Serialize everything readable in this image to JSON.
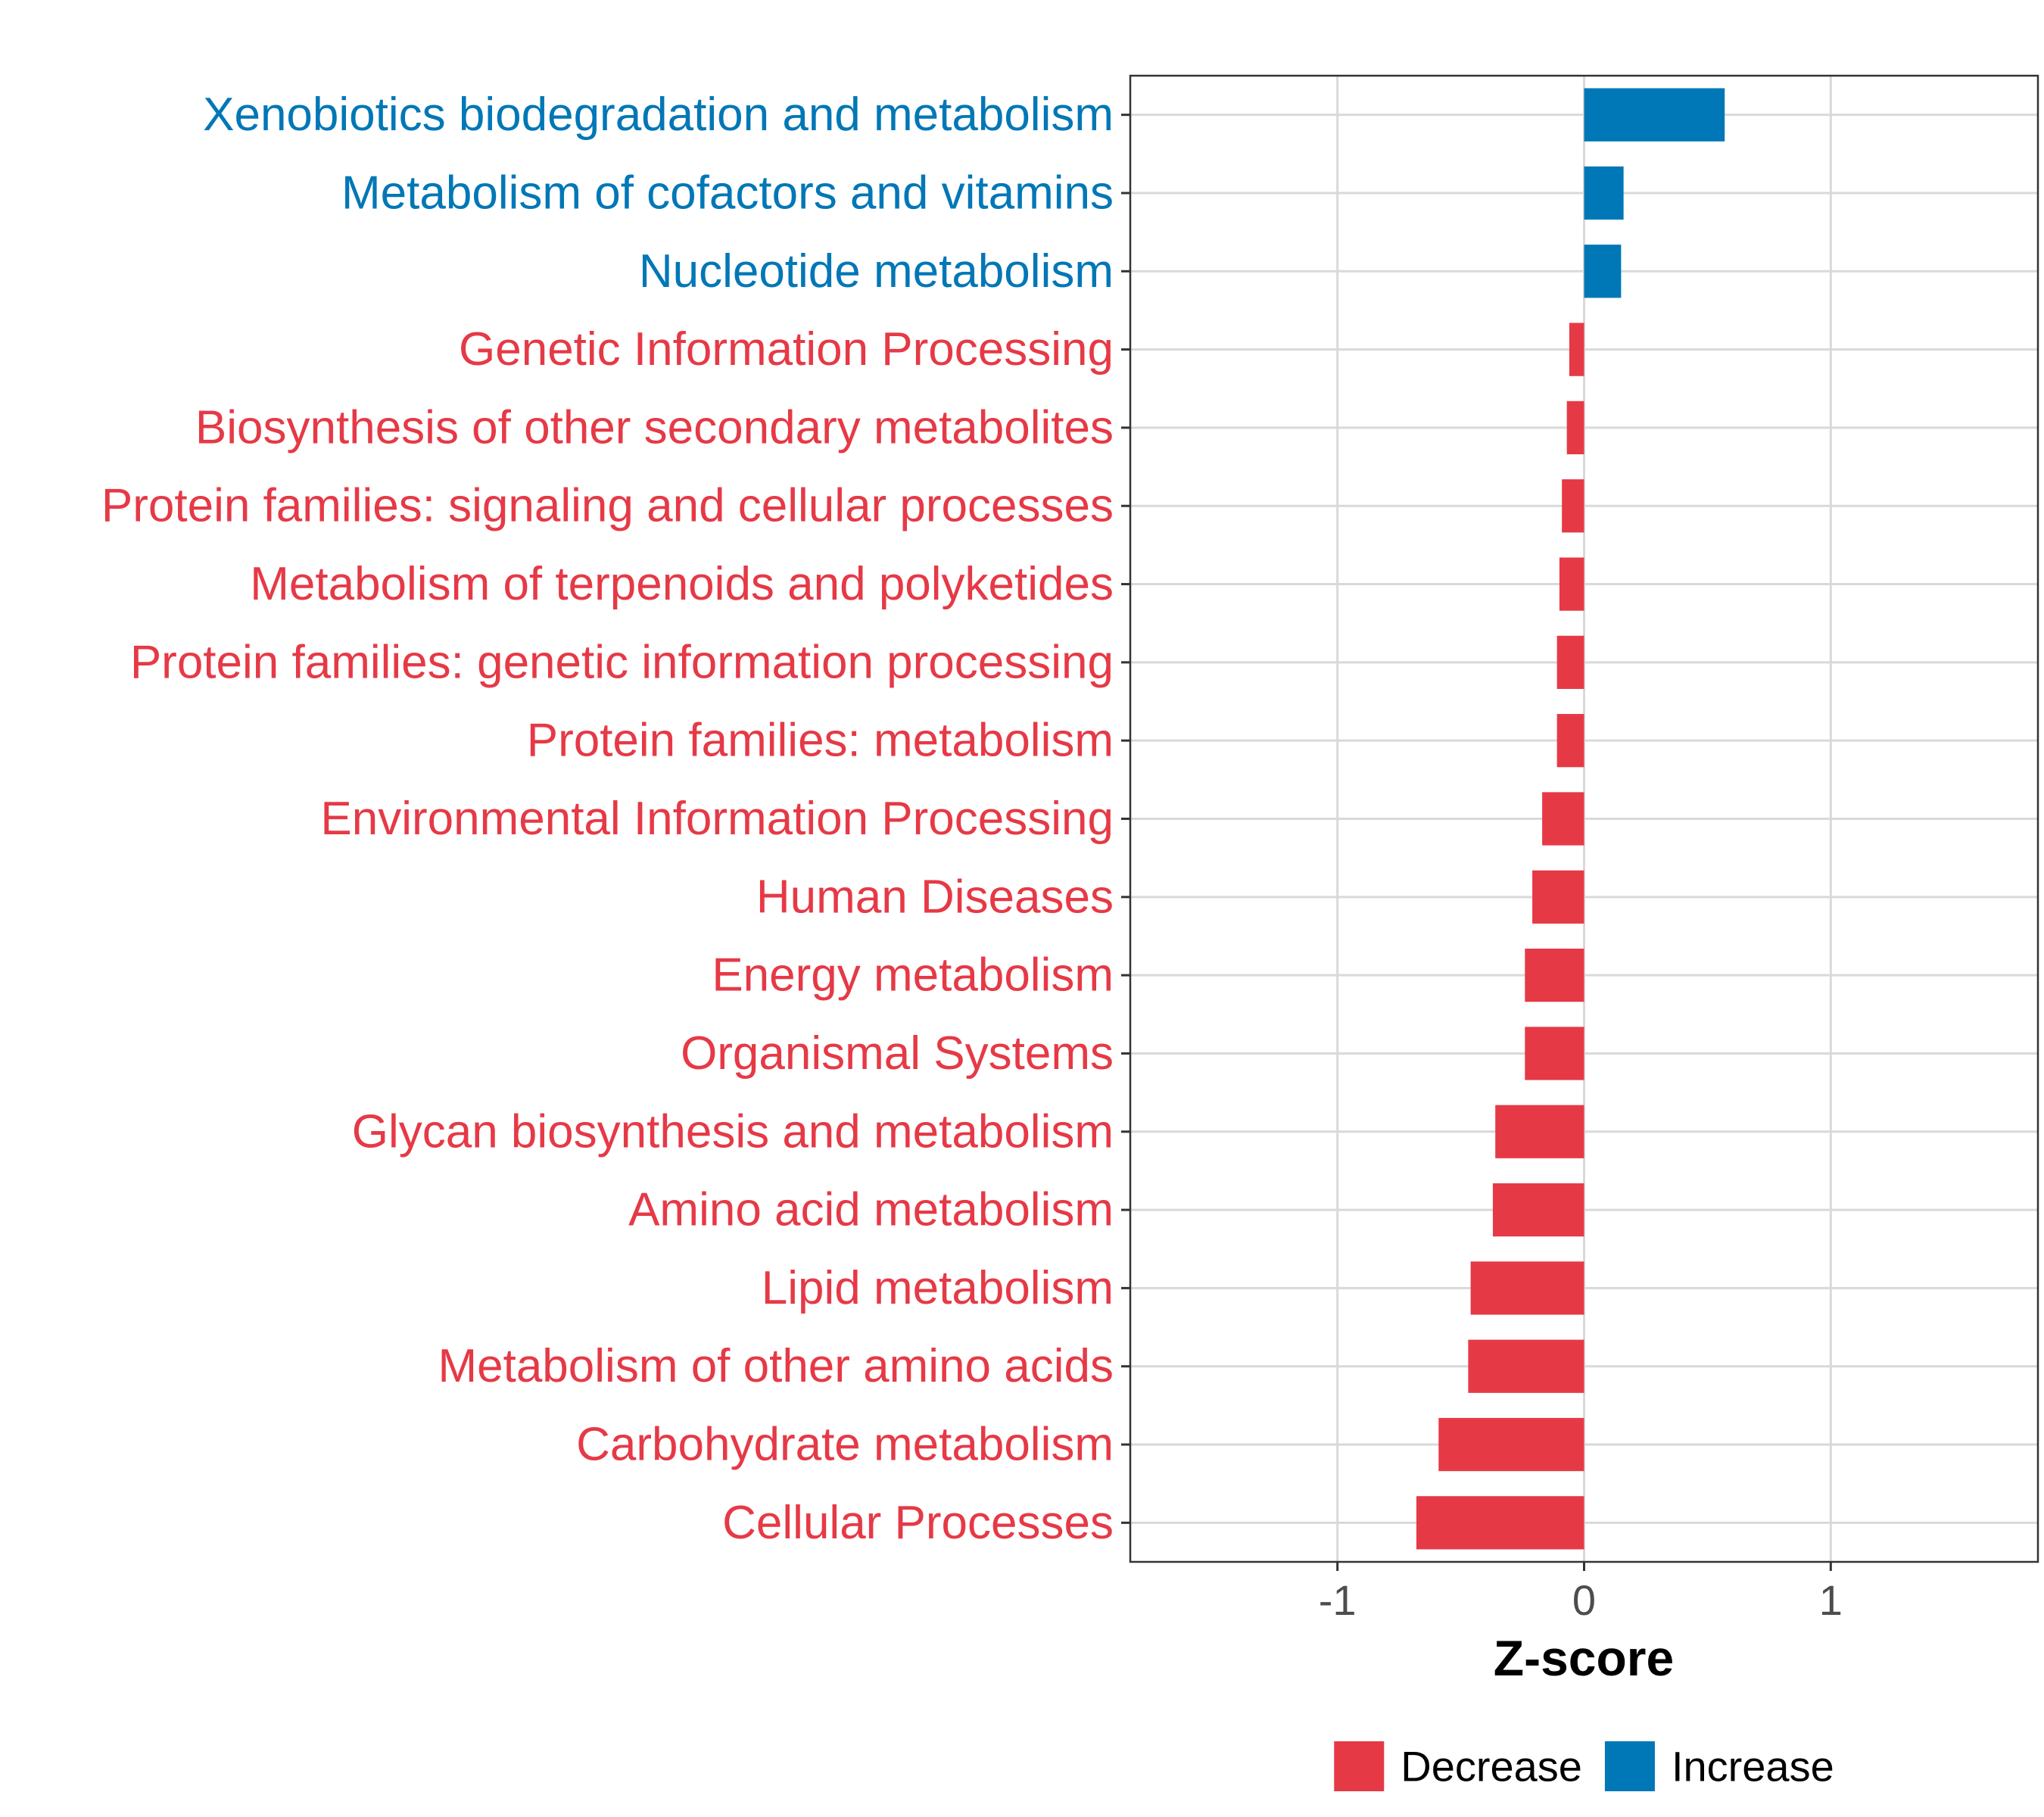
{
  "chart_data": {
    "type": "bar",
    "orientation": "horizontal",
    "categories": [
      "Xenobiotics biodegradation and metabolism",
      "Metabolism of cofactors and vitamins",
      "Nucleotide metabolism",
      "Genetic Information Processing",
      "Biosynthesis of other secondary metabolites",
      "Protein families: signaling and cellular processes",
      "Metabolism of terpenoids and polyketides",
      "Protein families: genetic information processing",
      "Protein families: metabolism",
      "Environmental Information Processing",
      "Human Diseases",
      "Energy metabolism",
      "Organismal Systems",
      "Glycan biosynthesis and metabolism",
      "Amino acid metabolism",
      "Lipid metabolism",
      "Metabolism of other amino acids",
      "Carbohydrate metabolism",
      "Cellular Processes"
    ],
    "values": [
      0.57,
      0.16,
      0.15,
      -0.06,
      -0.07,
      -0.09,
      -0.1,
      -0.11,
      -0.11,
      -0.17,
      -0.21,
      -0.24,
      -0.24,
      -0.36,
      -0.37,
      -0.46,
      -0.47,
      -0.59,
      -0.68
    ],
    "groups": [
      "Increase",
      "Increase",
      "Increase",
      "Decrease",
      "Decrease",
      "Decrease",
      "Decrease",
      "Decrease",
      "Decrease",
      "Decrease",
      "Decrease",
      "Decrease",
      "Decrease",
      "Decrease",
      "Decrease",
      "Decrease",
      "Decrease",
      "Decrease",
      "Decrease"
    ],
    "xlabel": "Z-score",
    "ylabel": "",
    "xlim": [
      -1.84,
      1.84
    ],
    "xticks": [
      -1,
      0,
      1
    ],
    "xtick_labels": [
      "-1",
      "0",
      "1"
    ],
    "grid": true,
    "legend": {
      "placement": "bottom",
      "entries": [
        {
          "label": "Decrease",
          "color": "#e63946"
        },
        {
          "label": "Increase",
          "color": "#0077b6"
        }
      ]
    },
    "colors": {
      "Decrease": "#e63946",
      "Increase": "#0077b6"
    }
  }
}
